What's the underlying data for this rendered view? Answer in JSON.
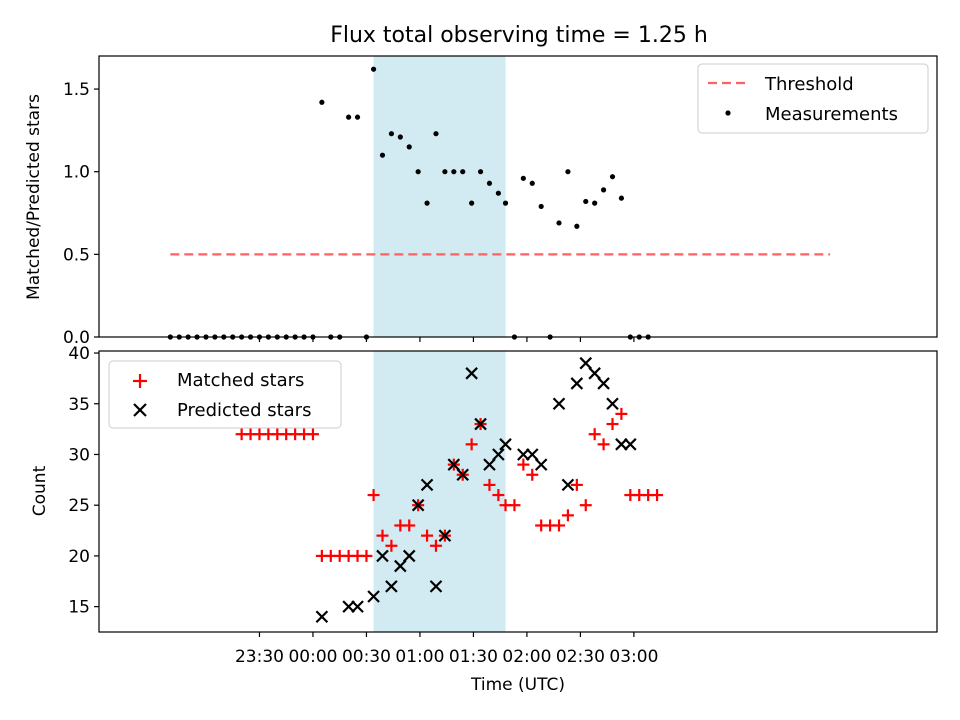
{
  "chart_data": [
    {
      "type": "scatter",
      "title": "Flux total observing time = 1.25 h",
      "ylabel": "Matched/Predicted stars",
      "ylim": [
        0,
        1.7
      ],
      "yticks": [
        0.0,
        0.5,
        1.0,
        1.5
      ],
      "ytick_labels": [
        "0.0",
        "0.5",
        "1.0",
        "1.5"
      ],
      "x_unit": "minutes relative to 00:00 UTC",
      "xlim": [
        -120,
        350
      ],
      "highlight_span": {
        "x0": 34,
        "x1": 108,
        "color": "#add8e6"
      },
      "threshold": {
        "name": "Threshold",
        "value": 0.5,
        "x0": -80,
        "x1": 290,
        "color": "#ff6060"
      },
      "series": [
        {
          "name": "Measurements",
          "color": "#000000",
          "x": [
            -80,
            -75,
            -70,
            -65,
            -60,
            -55,
            -50,
            -45,
            -40,
            -35,
            -30,
            -25,
            -20,
            -15,
            -10,
            -5,
            0,
            5,
            10,
            15,
            20,
            25,
            30,
            34,
            39,
            44,
            49,
            54,
            59,
            64,
            69,
            74,
            79,
            84,
            89,
            94,
            99,
            104,
            108,
            113,
            118,
            123,
            128,
            133,
            138,
            143,
            148,
            153,
            158,
            163,
            168,
            173,
            178,
            183,
            188,
            193,
            198,
            203,
            208,
            213,
            218,
            223,
            228,
            233,
            238,
            243,
            248,
            253,
            258,
            263,
            268,
            273,
            278,
            283,
            288
          ],
          "y": [
            0,
            0,
            0,
            0,
            0,
            0,
            0,
            0,
            0,
            0,
            0,
            0,
            0,
            0,
            0,
            0,
            0,
            1.42,
            0,
            0,
            1.33,
            1.33,
            0,
            1.62,
            1.1,
            1.23,
            1.21,
            1.15,
            1.0,
            0.81,
            1.23,
            1.0,
            1.0,
            1.0,
            0.81,
            1.0,
            0.93,
            0.87,
            0.81,
            0,
            0.96,
            0.93,
            0.79,
            0,
            0.69,
            1.0,
            0.67,
            0.82,
            0.81,
            0.89,
            0.97,
            0.84,
            0,
            0,
            0,
            null,
            null,
            null,
            null,
            null,
            null,
            null,
            null,
            null,
            null,
            null,
            null,
            null,
            null,
            null,
            null,
            null,
            null,
            null,
            null
          ]
        }
      ],
      "legend": {
        "placement": "top-right",
        "entries": [
          "Threshold",
          "Measurements"
        ]
      }
    },
    {
      "type": "scatter",
      "xlabel": "Time (UTC)",
      "ylabel": "Count",
      "ylim": [
        12.5,
        40.2
      ],
      "yticks": [
        15,
        20,
        25,
        30,
        35,
        40
      ],
      "ytick_labels": [
        "15",
        "20",
        "25",
        "30",
        "35",
        "40"
      ],
      "xticks": [
        -30,
        0,
        30,
        60,
        90,
        120,
        150,
        180
      ],
      "xtick_labels": [
        "23:30",
        "00:00",
        "00:30",
        "01:00",
        "01:30",
        "02:00",
        "02:30",
        "03:00"
      ],
      "x_unit": "minutes relative to 00:00 UTC",
      "xlim": [
        -120,
        350
      ],
      "highlight_span": {
        "x0": 34,
        "x1": 108,
        "color": "#add8e6"
      },
      "series": [
        {
          "name": "Matched stars",
          "color": "#ff0000",
          "marker": "+",
          "x": [
            -40,
            -35,
            -30,
            -25,
            -20,
            -15,
            -10,
            -5,
            0,
            5,
            10,
            15,
            20,
            25,
            30,
            34,
            39,
            44,
            49,
            54,
            59,
            64,
            69,
            74,
            79,
            84,
            89,
            94,
            99,
            104,
            108,
            113,
            118,
            123,
            128,
            133,
            138,
            143,
            148,
            153,
            158,
            163,
            168,
            173,
            178,
            183,
            188,
            193,
            198,
            203,
            208,
            213,
            218,
            223,
            228,
            233,
            238,
            243,
            248,
            253,
            258,
            263,
            268,
            273,
            278,
            283,
            288
          ],
          "y": [
            32,
            32,
            32,
            32,
            32,
            32,
            32,
            32,
            32,
            20,
            20,
            20,
            20,
            20,
            20,
            26,
            22,
            21,
            23,
            23,
            25,
            22,
            21,
            22,
            29,
            28,
            31,
            33,
            27,
            26,
            25,
            25,
            29,
            28,
            23,
            23,
            23,
            24,
            27,
            25,
            32,
            31,
            33,
            34,
            26,
            26,
            26,
            26,
            null,
            null,
            null,
            null,
            null,
            null,
            null,
            null,
            null,
            null,
            null,
            null,
            null,
            null,
            null,
            null,
            null,
            null,
            null
          ]
        },
        {
          "name": "Predicted stars",
          "color": "#000000",
          "marker": "x",
          "x": [
            5,
            20,
            25,
            34,
            39,
            44,
            49,
            54,
            59,
            64,
            69,
            74,
            79,
            84,
            89,
            94,
            99,
            104,
            108,
            118,
            123,
            128,
            138,
            143,
            148,
            153,
            158,
            163,
            168,
            173,
            178
          ],
          "y": [
            14,
            15,
            15,
            16,
            20,
            17,
            19,
            20,
            25,
            27,
            17,
            22,
            29,
            28,
            38,
            33,
            29,
            30,
            31,
            30,
            30,
            29,
            35,
            27,
            37,
            39,
            38,
            37,
            35,
            31,
            31
          ]
        }
      ],
      "legend": {
        "placement": "top-left",
        "entries": [
          "Matched stars",
          "Predicted stars"
        ]
      }
    }
  ]
}
